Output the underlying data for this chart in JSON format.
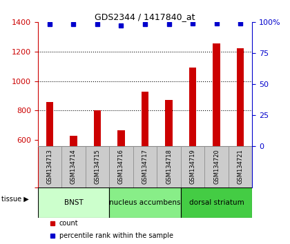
{
  "title": "GDS2344 / 1417840_at",
  "samples": [
    "GSM134713",
    "GSM134714",
    "GSM134715",
    "GSM134716",
    "GSM134717",
    "GSM134718",
    "GSM134719",
    "GSM134720",
    "GSM134721"
  ],
  "counts": [
    860,
    630,
    800,
    665,
    930,
    870,
    1090,
    1255,
    1220
  ],
  "percentiles": [
    98,
    98,
    98,
    97,
    98,
    98,
    99,
    99,
    99
  ],
  "tissue_groups": [
    {
      "label": "BNST",
      "start": 0,
      "end": 3,
      "color": "#ccffcc"
    },
    {
      "label": "nucleus accumbens",
      "start": 3,
      "end": 6,
      "color": "#88ee88"
    },
    {
      "label": "dorsal striatum",
      "start": 6,
      "end": 9,
      "color": "#44cc44"
    }
  ],
  "ylim_left": [
    560,
    1400
  ],
  "ylim_right": [
    0,
    100
  ],
  "yticks_left": [
    600,
    800,
    1000,
    1200,
    1400
  ],
  "yticks_right": [
    0,
    25,
    50,
    75,
    100
  ],
  "bar_color": "#cc0000",
  "dot_color": "#0000cc",
  "background_color": "#ffffff",
  "sample_bg": "#cccccc",
  "plot_bg": "#ffffff",
  "grid_color": "#000000",
  "title_color": "#000000",
  "left_axis_color": "#cc0000",
  "right_axis_color": "#0000cc",
  "bar_width": 0.3
}
